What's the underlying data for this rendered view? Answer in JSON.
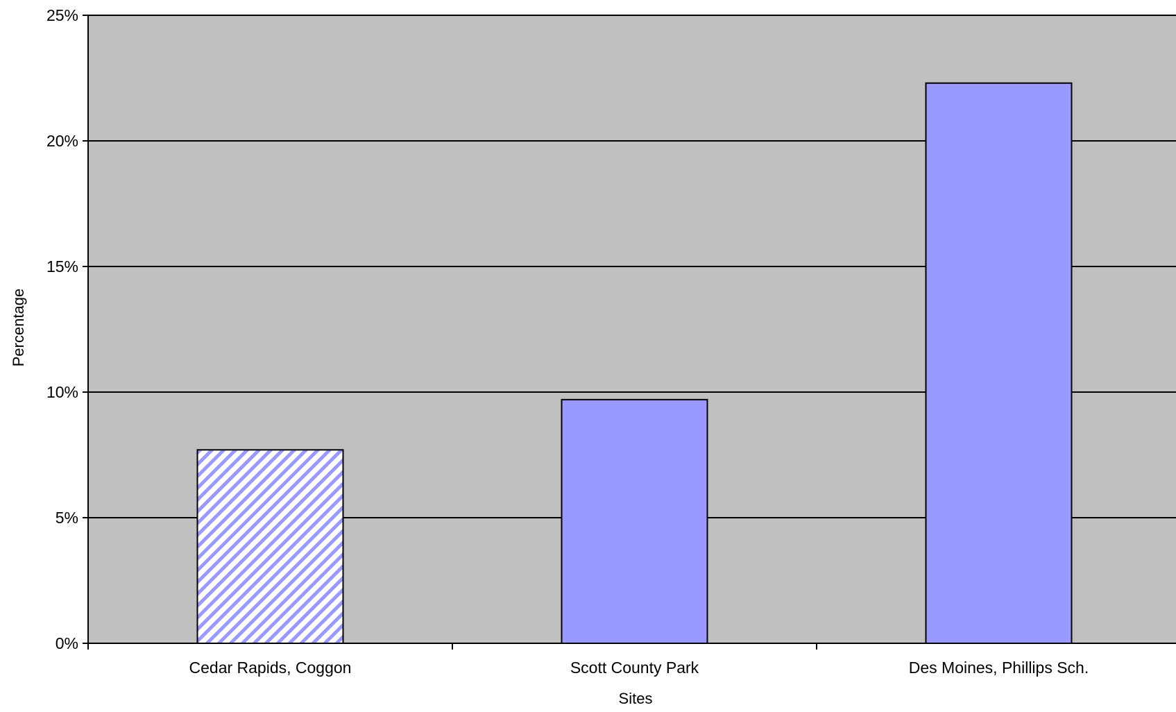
{
  "chart_data": {
    "type": "bar",
    "title": "",
    "xlabel": "Sites",
    "ylabel": "Percentage",
    "categories": [
      "Cedar Rapids, Coggon",
      "Scott County Park",
      "Des Moines, Phillips Sch."
    ],
    "values": [
      7.7,
      9.7,
      22.3
    ],
    "value_format": "percent",
    "ylim": [
      0,
      25
    ],
    "yticks": [
      0,
      5,
      10,
      15,
      20,
      25
    ],
    "ytick_labels": [
      "0%",
      "5%",
      "10%",
      "15%",
      "20%",
      "25%"
    ],
    "grid": true,
    "legend": "none",
    "bar_styles": [
      "hatched",
      "solid",
      "solid"
    ],
    "colors": {
      "plot_background": "#c0c0c0",
      "bar_fill": "#9999ff",
      "bar_outline": "#000000",
      "hatch_background": "#ffffff",
      "gridline": "#000000"
    }
  }
}
